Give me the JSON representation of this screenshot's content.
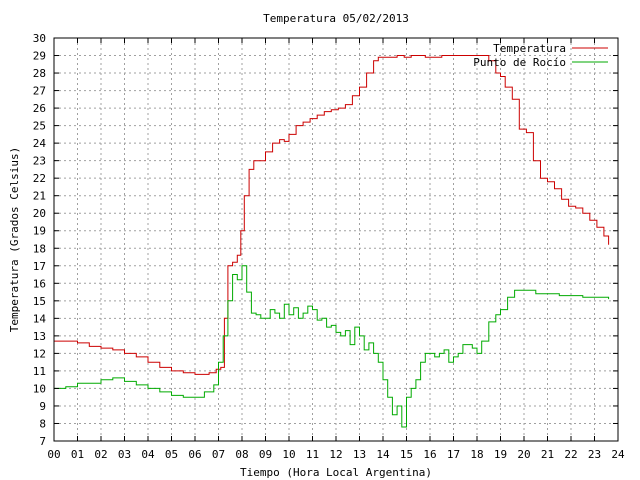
{
  "chart_data": {
    "type": "line",
    "title": "Temperatura 05/02/2013",
    "xlabel": "Tiempo (Hora Local Argentina)",
    "ylabel": "Temperatura (Grados Celsius)",
    "xlim": [
      0,
      24
    ],
    "ylim": [
      7,
      30
    ],
    "grid": true,
    "legend_position": "top-right",
    "x_tick_labels": [
      "00",
      "01",
      "02",
      "03",
      "04",
      "05",
      "06",
      "07",
      "08",
      "09",
      "10",
      "11",
      "12",
      "13",
      "14",
      "15",
      "16",
      "17",
      "18",
      "19",
      "20",
      "21",
      "22",
      "23",
      "24"
    ],
    "y_ticks": [
      7,
      8,
      9,
      10,
      11,
      12,
      13,
      14,
      15,
      16,
      17,
      18,
      19,
      20,
      21,
      22,
      23,
      24,
      25,
      26,
      27,
      28,
      29,
      30
    ],
    "series": [
      {
        "name": "Temperatura",
        "color": "#cc0000",
        "x": [
          0,
          0.5,
          1,
          1.5,
          2,
          2.5,
          3,
          3.5,
          4,
          4.5,
          5,
          5.5,
          6,
          6.3,
          6.6,
          6.9,
          7.1,
          7.25,
          7.4,
          7.6,
          7.8,
          7.95,
          8.1,
          8.3,
          8.5,
          8.7,
          9,
          9.3,
          9.6,
          9.8,
          10,
          10.3,
          10.6,
          10.9,
          11.2,
          11.5,
          11.8,
          12.1,
          12.4,
          12.7,
          13,
          13.3,
          13.6,
          13.8,
          14,
          14.3,
          14.6,
          14.9,
          15.2,
          15.5,
          15.8,
          16.1,
          16.5,
          17,
          17.5,
          17.9,
          18.2,
          18.5,
          18.8,
          19,
          19.2,
          19.5,
          19.8,
          20.1,
          20.4,
          20.7,
          21,
          21.3,
          21.6,
          21.9,
          22.2,
          22.5,
          22.8,
          23.1,
          23.4,
          23.6
        ],
        "y": [
          12.7,
          12.7,
          12.6,
          12.4,
          12.3,
          12.2,
          12.0,
          11.8,
          11.5,
          11.2,
          11.0,
          10.9,
          10.8,
          10.8,
          10.9,
          11.1,
          11.2,
          14.0,
          17.0,
          17.2,
          17.6,
          19.0,
          21.0,
          22.5,
          23.0,
          23.0,
          23.5,
          24.0,
          24.2,
          24.1,
          24.5,
          25.0,
          25.2,
          25.4,
          25.6,
          25.8,
          25.9,
          26.0,
          26.2,
          26.7,
          27.2,
          28.0,
          28.7,
          28.9,
          28.9,
          28.9,
          29.0,
          28.9,
          29.0,
          29.0,
          28.9,
          28.9,
          29.0,
          29.0,
          29.0,
          29.0,
          29.0,
          28.7,
          28.0,
          27.8,
          27.2,
          26.5,
          24.8,
          24.6,
          23.0,
          22.0,
          21.8,
          21.4,
          20.8,
          20.4,
          20.3,
          20.0,
          19.6,
          19.2,
          18.7,
          18.2
        ]
      },
      {
        "name": "Punto de Rocío",
        "color": "#00aa00",
        "x": [
          0,
          0.5,
          1,
          1.5,
          2,
          2.5,
          3,
          3.5,
          4,
          4.5,
          5,
          5.5,
          6,
          6.4,
          6.8,
          7.0,
          7.2,
          7.4,
          7.6,
          7.8,
          8.0,
          8.2,
          8.4,
          8.6,
          8.8,
          9.0,
          9.2,
          9.4,
          9.6,
          9.8,
          10.0,
          10.2,
          10.4,
          10.6,
          10.8,
          11.0,
          11.2,
          11.4,
          11.6,
          11.8,
          12.0,
          12.2,
          12.4,
          12.6,
          12.8,
          13.0,
          13.2,
          13.4,
          13.6,
          13.8,
          14.0,
          14.2,
          14.4,
          14.6,
          14.8,
          15.0,
          15.2,
          15.4,
          15.6,
          15.8,
          16.0,
          16.2,
          16.4,
          16.6,
          16.8,
          17.0,
          17.2,
          17.4,
          17.6,
          17.8,
          18.0,
          18.2,
          18.5,
          18.8,
          19.0,
          19.3,
          19.6,
          20.0,
          20.5,
          21.0,
          21.5,
          22.0,
          22.5,
          23.0,
          23.3,
          23.6
        ],
        "y": [
          10.0,
          10.1,
          10.3,
          10.3,
          10.5,
          10.6,
          10.4,
          10.2,
          10.0,
          9.8,
          9.6,
          9.5,
          9.5,
          9.8,
          10.2,
          11.5,
          13.0,
          15.0,
          16.5,
          16.2,
          17.0,
          15.5,
          14.3,
          14.2,
          14.0,
          14.0,
          14.5,
          14.3,
          14.0,
          14.8,
          14.2,
          14.6,
          14.0,
          14.3,
          14.7,
          14.5,
          13.9,
          14.0,
          13.5,
          13.6,
          13.2,
          13.0,
          13.3,
          12.5,
          13.5,
          13.0,
          12.2,
          12.6,
          12.0,
          11.5,
          10.5,
          9.5,
          8.5,
          9.0,
          7.8,
          9.5,
          10.0,
          10.5,
          11.5,
          12.0,
          12.0,
          11.8,
          12.0,
          12.2,
          11.5,
          11.8,
          12.0,
          12.5,
          12.5,
          12.3,
          12.0,
          12.7,
          13.8,
          14.2,
          14.5,
          15.2,
          15.6,
          15.6,
          15.4,
          15.4,
          15.3,
          15.3,
          15.2,
          15.2,
          15.2,
          15.1
        ]
      }
    ]
  }
}
